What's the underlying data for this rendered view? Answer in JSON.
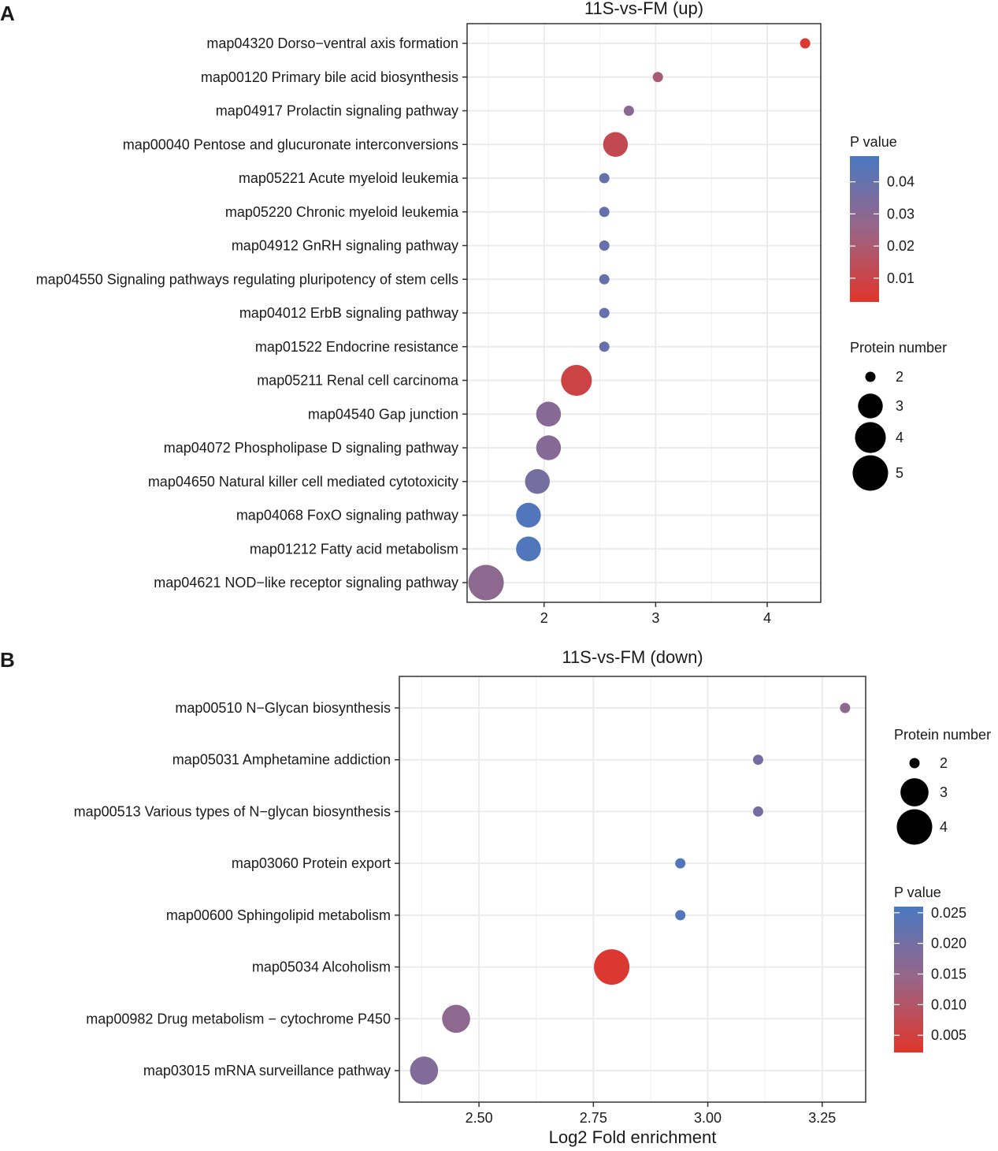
{
  "chart_data": [
    {
      "panel_label": "A",
      "type": "scatter",
      "title": "11S-vs-FM (up)",
      "xlabel": "",
      "ylabel": "",
      "xlim": [
        1.31,
        4.48
      ],
      "xticks": [
        2,
        3,
        4
      ],
      "xtick_labels": [
        "2",
        "3",
        "4"
      ],
      "grid": true,
      "categories": [
        "map04320 Dorso−ventral axis formation",
        "map00120 Primary bile acid biosynthesis",
        "map04917 Prolactin signaling pathway",
        "map00040 Pentose and glucuronate interconversions",
        "map05221 Acute myeloid leukemia",
        "map05220 Chronic myeloid leukemia",
        "map04912 GnRH signaling pathway",
        "map04550 Signaling pathways regulating pluripotency of stem cells",
        "map04012 ErbB signaling pathway",
        "map01522 Endocrine resistance",
        "map05211 Renal cell carcinoma",
        "map04540 Gap junction",
        "map04072 Phospholipase D signaling pathway",
        "map04650 Natural killer cell mediated cytotoxicity",
        "map04068 FoxO signaling pathway",
        "map01212 Fatty acid metabolism",
        "map04621 NOD−like receptor signaling pathway"
      ],
      "x": [
        4.34,
        3.02,
        2.76,
        2.64,
        2.54,
        2.54,
        2.54,
        2.54,
        2.54,
        2.54,
        2.29,
        2.04,
        2.04,
        1.94,
        1.86,
        1.86,
        1.48
      ],
      "protein_number": [
        2,
        2,
        2,
        3,
        2,
        2,
        2,
        2,
        2,
        2,
        4,
        3,
        3,
        3,
        3,
        3,
        5
      ],
      "p_value": [
        0.004,
        0.021,
        0.03,
        0.012,
        0.04,
        0.04,
        0.04,
        0.04,
        0.04,
        0.04,
        0.009,
        0.031,
        0.031,
        0.036,
        0.046,
        0.046,
        0.029
      ],
      "color_legend": {
        "title": "P value",
        "range": [
          0.0026,
          0.048
        ],
        "ticks": [
          0.04,
          0.03,
          0.02,
          0.01
        ],
        "tick_labels": [
          "0.04",
          "0.03",
          "0.02",
          "0.01"
        ],
        "position": "right-top"
      },
      "size_legend": {
        "title": "Protein number",
        "values": [
          2,
          3,
          4,
          5
        ],
        "labels": [
          "2",
          "3",
          "4",
          "5"
        ],
        "position": "right-bottom"
      }
    },
    {
      "panel_label": "B",
      "type": "scatter",
      "title": "11S-vs-FM (down)",
      "xlabel": "Log2 Fold enrichment",
      "ylabel": "",
      "xlim": [
        2.326,
        3.345
      ],
      "xticks": [
        2.5,
        2.75,
        3.0,
        3.25
      ],
      "xtick_labels": [
        "2.50",
        "2.75",
        "3.00",
        "3.25"
      ],
      "grid": true,
      "categories": [
        "map00510 N−Glycan biosynthesis",
        "map05031 Amphetamine addiction",
        "map00513 Various types of N−glycan biosynthesis",
        "map03060 Protein export",
        "map00600 Sphingolipid metabolism",
        "map05034 Alcoholism",
        "map00982 Drug metabolism − cytochrome P450",
        "map03015 mRNA surveillance pathway"
      ],
      "x": [
        3.3,
        3.11,
        3.11,
        2.94,
        2.94,
        2.79,
        2.45,
        2.38
      ],
      "protein_number": [
        2,
        2,
        2,
        2,
        2,
        4,
        3,
        3
      ],
      "p_value": [
        0.016,
        0.02,
        0.02,
        0.025,
        0.025,
        0.003,
        0.016,
        0.018
      ],
      "color_legend": {
        "title": "P value",
        "range": [
          0.0022,
          0.026
        ],
        "ticks": [
          0.025,
          0.02,
          0.015,
          0.01,
          0.005
        ],
        "tick_labels": [
          "0.025",
          "0.020",
          "0.015",
          "0.010",
          "0.005"
        ],
        "position": "right-bottom"
      },
      "size_legend": {
        "title": "Protein number",
        "values": [
          2,
          3,
          4
        ],
        "labels": [
          "2",
          "3",
          "4"
        ],
        "position": "right-top"
      }
    }
  ],
  "colors": {
    "low": "#E0352B",
    "mid": "#9A6586",
    "high": "#4A78C0",
    "grid": "#EBEBEB",
    "border": "#333333"
  }
}
